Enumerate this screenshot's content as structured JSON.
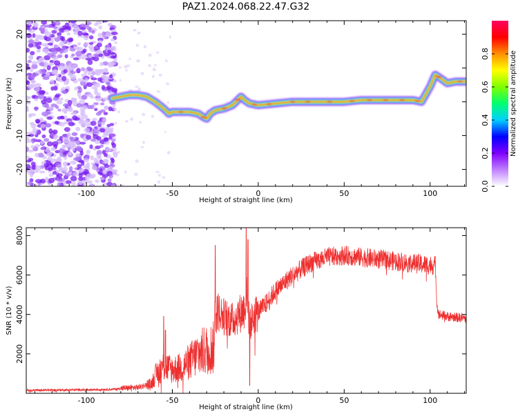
{
  "figure": {
    "title": "PAZ1.2024.068.22.47.G32"
  },
  "chart_data": [
    {
      "type": "heatmap",
      "xlabel": "Height of straight line (km)",
      "ylabel": "Frequency (Hz)",
      "xlim": [
        -135,
        121
      ],
      "ylim": [
        -25,
        24
      ],
      "x_ticks": [
        -100,
        -50,
        0,
        50,
        100
      ],
      "y_ticks": [
        -20,
        -10,
        0,
        10,
        20
      ],
      "grid": false,
      "colorbar": {
        "label": "Normalized spectral amplitude",
        "range": [
          0,
          1
        ],
        "ticks": [
          0.0,
          0.2,
          0.4,
          0.6,
          0.8
        ],
        "colors": [
          "#ffffff",
          "#bf80ff",
          "#8000ff",
          "#0000ff",
          "#00d0ff",
          "#00ff70",
          "#80ff00",
          "#ffff00",
          "#ff9000",
          "#ff0000",
          "#ff0060"
        ]
      },
      "ridge_frequency": {
        "x": [
          -85,
          -80,
          -75,
          -70,
          -65,
          -60,
          -55,
          -52,
          -50,
          -45,
          -40,
          -35,
          -32,
          -30,
          -28,
          -25,
          -20,
          -15,
          -10,
          -8,
          -5,
          0,
          10,
          20,
          30,
          40,
          50,
          60,
          70,
          80,
          90,
          95,
          100,
          103,
          106,
          110,
          115,
          121
        ],
        "y": [
          1.0,
          1.5,
          2.0,
          2.0,
          1.5,
          0.0,
          -2.0,
          -3.5,
          -3.0,
          -3.0,
          -3.0,
          -3.5,
          -4.5,
          -5.0,
          -3.5,
          -2.5,
          -2.0,
          -1.0,
          1.5,
          0.5,
          -0.5,
          -1.0,
          -0.5,
          0.0,
          0.0,
          0.0,
          0.0,
          0.5,
          0.5,
          0.5,
          0.5,
          0.0,
          4.5,
          8.0,
          7.0,
          5.5,
          6.0,
          6.0
        ]
      },
      "noise_region_x": [
        -135,
        -85
      ]
    },
    {
      "type": "line",
      "xlabel": "Height of straight line (km)",
      "ylabel": "SNR (10 * v/v)",
      "xlim": [
        -135,
        121
      ],
      "ylim": [
        0,
        8400
      ],
      "x_ticks": [
        -100,
        -50,
        0,
        50,
        100
      ],
      "y_ticks": [
        2000,
        4000,
        6000,
        8000
      ],
      "grid": false,
      "color": "#ee3030",
      "trend": {
        "x": [
          -135,
          -100,
          -85,
          -80,
          -70,
          -62,
          -60,
          -55,
          -50,
          -45,
          -40,
          -35,
          -30,
          -26,
          -25,
          -24,
          -20,
          -15,
          -10,
          -8,
          -7,
          -6,
          -5,
          -2,
          0,
          5,
          10,
          20,
          30,
          40,
          50,
          60,
          70,
          80,
          90,
          100,
          103,
          104,
          105,
          110,
          121
        ],
        "y": [
          150,
          180,
          200,
          250,
          300,
          500,
          900,
          1400,
          1200,
          1300,
          1600,
          2000,
          2200,
          2300,
          3800,
          4200,
          3900,
          3700,
          4100,
          4300,
          5000,
          4200,
          3500,
          4000,
          4100,
          4600,
          5200,
          6000,
          6600,
          6900,
          7000,
          6900,
          6800,
          6700,
          6600,
          6500,
          6500,
          4500,
          4000,
          3900,
          3800
        ]
      },
      "spikes": {
        "x": [
          -55,
          -54,
          -25,
          -7,
          -6,
          -5
        ],
        "y": [
          3900,
          3200,
          7500,
          8400,
          7800,
          400
        ]
      }
    }
  ]
}
